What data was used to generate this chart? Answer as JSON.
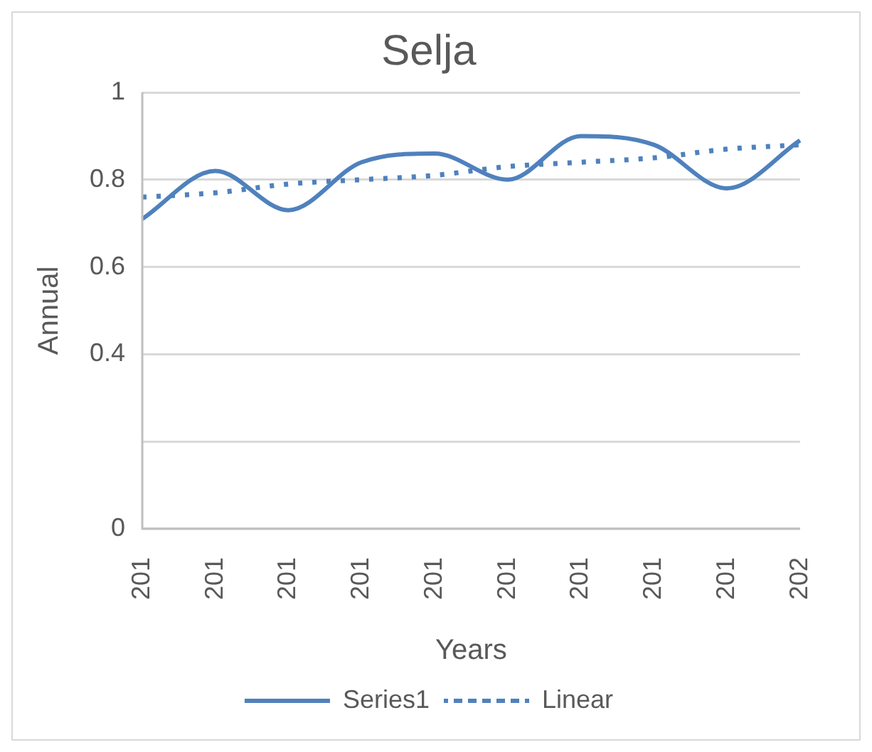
{
  "chart_data": {
    "type": "line",
    "title": "Selja",
    "xlabel": "Years",
    "ylabel": "Annual",
    "categories": [
      "201",
      "201",
      "201",
      "201",
      "201",
      "201",
      "201",
      "201",
      "201",
      "202"
    ],
    "series": [
      {
        "name": "Series1",
        "color": "#4f81bd",
        "line_style": "solid",
        "values": [
          0.71,
          0.82,
          0.73,
          0.84,
          0.86,
          0.8,
          0.9,
          0.88,
          0.78,
          0.89
        ]
      },
      {
        "name": "Linear",
        "color": "#4f81bd",
        "line_style": "dotted",
        "values": [
          0.76,
          0.77,
          0.79,
          0.8,
          0.81,
          0.83,
          0.84,
          0.85,
          0.87,
          0.88
        ]
      }
    ],
    "ylim": [
      0,
      1
    ],
    "yticks": [
      0,
      {
        "value": 0.2,
        "label": null
      },
      0.4,
      0.6,
      0.8,
      1
    ],
    "grid": "y",
    "legend": "bottom",
    "marker": "none"
  }
}
